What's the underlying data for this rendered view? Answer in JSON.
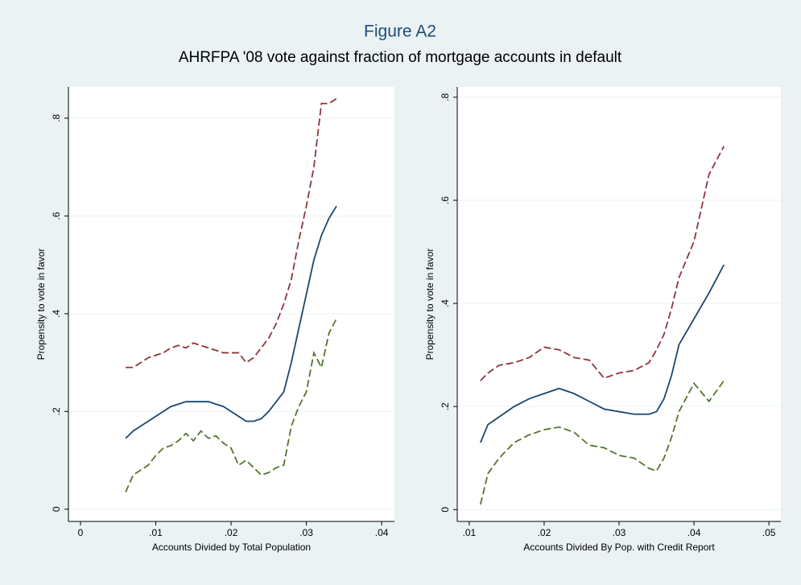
{
  "title": "Figure A2",
  "subtitle": "AHRFPA '08 vote against fraction of mortgage accounts in default",
  "chart_data": [
    {
      "type": "line",
      "x_label": "Accounts Divided by Total Population",
      "y_label": "Propensity to vote in favor",
      "xlim": [
        -0.0016,
        0.0417
      ],
      "ylim": [
        -0.025,
        0.864
      ],
      "xticks": [
        0,
        {
          "value": 0.01,
          "label": ".01"
        },
        {
          "value": 0.02,
          "label": ".02"
        },
        {
          "value": 0.03,
          "label": ".03"
        },
        {
          "value": 0.04,
          "label": ".04"
        }
      ],
      "yticks": [
        0,
        {
          "value": 0.2,
          "label": ".2"
        },
        {
          "value": 0.4,
          "label": ".4"
        },
        {
          "value": 0.6,
          "label": ".6"
        },
        {
          "value": 0.8,
          "label": ".8"
        }
      ],
      "grid": true,
      "x": [
        0.006,
        0.007,
        0.008,
        0.009,
        0.01,
        0.011,
        0.012,
        0.013,
        0.014,
        0.015,
        0.016,
        0.017,
        0.018,
        0.019,
        0.02,
        0.021,
        0.022,
        0.023,
        0.024,
        0.025,
        0.026,
        0.027,
        0.028,
        0.029,
        0.03,
        0.031,
        0.032,
        0.033,
        0.034
      ],
      "series": [
        {
          "color": "#90353b",
          "dash": true,
          "values": [
            0.29,
            0.29,
            0.3,
            0.31,
            0.315,
            0.32,
            0.33,
            0.335,
            0.33,
            0.34,
            0.335,
            0.33,
            0.325,
            0.32,
            0.32,
            0.32,
            0.3,
            0.31,
            0.33,
            0.35,
            0.38,
            0.42,
            0.47,
            0.55,
            0.62,
            0.7,
            0.83,
            0.83,
            0.84
          ]
        },
        {
          "color": "#1a476f",
          "dash": false,
          "values": [
            0.145,
            0.16,
            0.17,
            0.18,
            0.19,
            0.2,
            0.21,
            0.215,
            0.22,
            0.22,
            0.22,
            0.22,
            0.215,
            0.21,
            0.2,
            0.19,
            0.18,
            0.18,
            0.185,
            0.2,
            0.22,
            0.24,
            0.3,
            0.37,
            0.44,
            0.51,
            0.56,
            0.595,
            0.62
          ]
        },
        {
          "color": "#55752f",
          "dash": true,
          "values": [
            0.035,
            0.07,
            0.08,
            0.09,
            0.11,
            0.125,
            0.13,
            0.14,
            0.155,
            0.14,
            0.16,
            0.145,
            0.15,
            0.135,
            0.125,
            0.09,
            0.1,
            0.085,
            0.07,
            0.075,
            0.085,
            0.09,
            0.17,
            0.21,
            0.24,
            0.32,
            0.29,
            0.36,
            0.39
          ]
        }
      ]
    },
    {
      "type": "line",
      "x_label": "Accounts Divided By Pop. with Credit Report",
      "y_label": "Propensity to vote in favor",
      "xlim": [
        0.0084,
        0.0516
      ],
      "ylim": [
        -0.023,
        0.82
      ],
      "xticks": [
        {
          "value": 0.01,
          "label": ".01"
        },
        {
          "value": 0.02,
          "label": ".02"
        },
        {
          "value": 0.03,
          "label": ".03"
        },
        {
          "value": 0.04,
          "label": ".04"
        },
        {
          "value": 0.05,
          "label": ".05"
        }
      ],
      "yticks": [
        0,
        {
          "value": 0.2,
          "label": ".2"
        },
        {
          "value": 0.4,
          "label": ".4"
        },
        {
          "value": 0.6,
          "label": ".6"
        },
        {
          "value": 0.8,
          "label": ".8"
        }
      ],
      "grid": true,
      "x": [
        0.0115,
        0.0125,
        0.014,
        0.016,
        0.018,
        0.02,
        0.022,
        0.024,
        0.026,
        0.028,
        0.03,
        0.032,
        0.034,
        0.035,
        0.036,
        0.037,
        0.038,
        0.04,
        0.042,
        0.044
      ],
      "series": [
        {
          "color": "#90353b",
          "dash": true,
          "values": [
            0.25,
            0.265,
            0.28,
            0.285,
            0.295,
            0.315,
            0.31,
            0.295,
            0.29,
            0.255,
            0.265,
            0.27,
            0.285,
            0.31,
            0.34,
            0.39,
            0.45,
            0.52,
            0.65,
            0.705
          ]
        },
        {
          "color": "#1a476f",
          "dash": false,
          "values": [
            0.13,
            0.165,
            0.18,
            0.2,
            0.215,
            0.225,
            0.235,
            0.225,
            0.21,
            0.195,
            0.19,
            0.185,
            0.185,
            0.19,
            0.215,
            0.26,
            0.32,
            0.37,
            0.42,
            0.475
          ]
        },
        {
          "color": "#55752f",
          "dash": true,
          "values": [
            0.01,
            0.07,
            0.1,
            0.13,
            0.145,
            0.155,
            0.16,
            0.15,
            0.125,
            0.12,
            0.105,
            0.1,
            0.08,
            0.075,
            0.1,
            0.14,
            0.19,
            0.245,
            0.21,
            0.25
          ]
        }
      ]
    }
  ]
}
